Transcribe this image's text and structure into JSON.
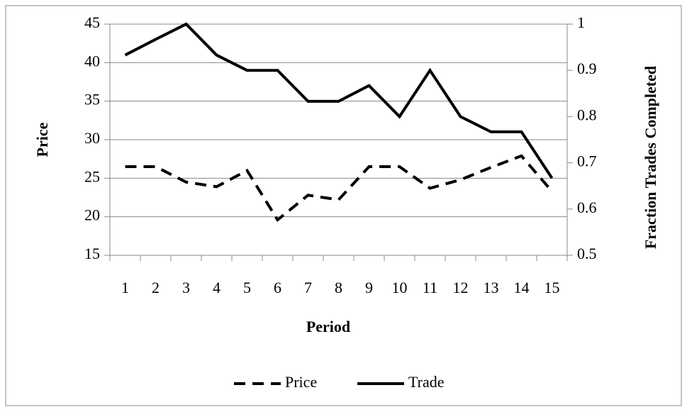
{
  "chart_data": {
    "type": "line",
    "x_label": "Period",
    "y_label": "Price",
    "y2_label": "Fraction Trades Completed",
    "categories": [
      "1",
      "2",
      "3",
      "4",
      "5",
      "6",
      "7",
      "8",
      "9",
      "10",
      "11",
      "12",
      "13",
      "14",
      "15"
    ],
    "series": [
      {
        "name": "Price",
        "color": "#000000",
        "dash": true,
        "axis": "y",
        "values": [
          26.5,
          26.5,
          24.5,
          23.9,
          26,
          19.6,
          22.8,
          22.2,
          26.5,
          26.5,
          23.7,
          24.8,
          26.4,
          27.9,
          23.3
        ]
      },
      {
        "name": "Trade",
        "color": "#000000",
        "dash": false,
        "axis": "y2",
        "values": [
          0.933,
          0.967,
          1,
          0.933,
          0.9,
          0.9,
          0.833,
          0.833,
          0.867,
          0.8,
          0.9,
          0.8,
          0.767,
          0.767,
          0.667
        ]
      }
    ],
    "ylim": [
      15,
      45
    ],
    "yticks": [
      15,
      20,
      25,
      30,
      35,
      40,
      45
    ],
    "y2lim": [
      0.5,
      1
    ],
    "y2ticks": [
      0.5,
      0.6,
      0.7,
      0.8,
      0.9,
      1
    ],
    "grid": true,
    "legend": "bottom"
  }
}
